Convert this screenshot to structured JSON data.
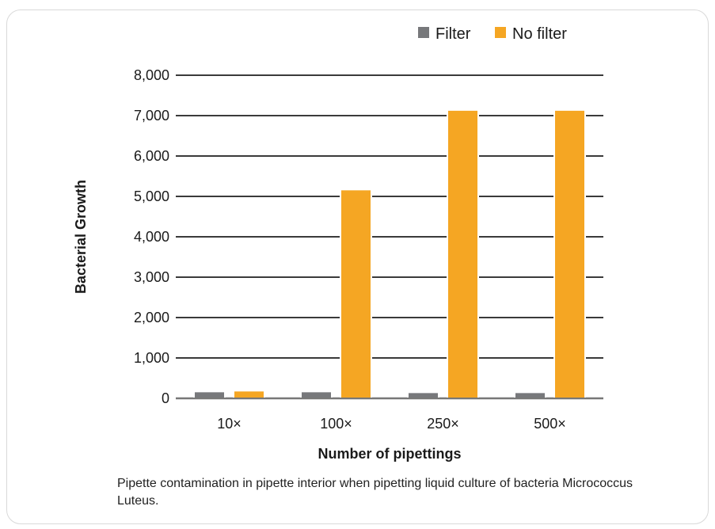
{
  "chart_data": {
    "type": "bar",
    "categories": [
      "10×",
      "100×",
      "250×",
      "500×"
    ],
    "series": [
      {
        "name": "Filter",
        "values": [
          150,
          150,
          130,
          130
        ],
        "color": "#77787b"
      },
      {
        "name": "No filter",
        "values": [
          170,
          5150,
          7120,
          7120
        ],
        "color": "#f5a623"
      }
    ],
    "title": "",
    "xlabel": "Number of pipettings",
    "ylabel": "Bacterial Growth",
    "ylim": [
      0,
      8000
    ],
    "yticks": [
      0,
      1000,
      2000,
      3000,
      4000,
      5000,
      6000,
      7000,
      8000
    ],
    "ytick_labels": [
      "0",
      "1,000",
      "2,000",
      "3,000",
      "4,000",
      "5,000",
      "6,000",
      "7,000",
      "8,000"
    ],
    "grid": true,
    "legend_position": "top-right"
  },
  "caption": "Pipette contamination in pipette interior when pipetting liquid culture of bacteria Micrococcus Luteus."
}
